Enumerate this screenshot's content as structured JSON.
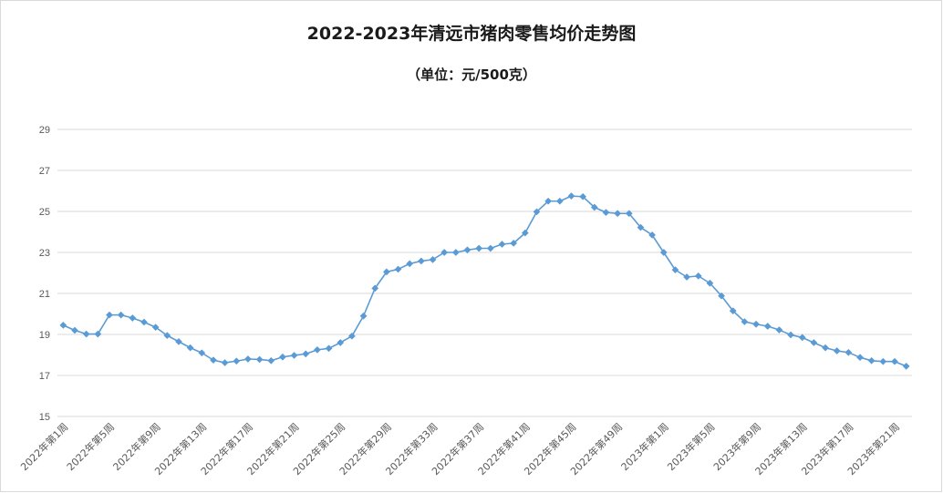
{
  "chart_data": {
    "type": "line",
    "title": "2022-2023年清远市猪肉零售均价走势图",
    "subtitle": "（单位：元/500克）",
    "xlabel": "",
    "ylabel": "",
    "ylim": [
      15,
      29
    ],
    "yticks": [
      15,
      17,
      19,
      21,
      23,
      25,
      27,
      29
    ],
    "grid": true,
    "legend": "none",
    "colors": {
      "line": "#5b9bd5",
      "grid": "#d9d9d9",
      "text": "#595959"
    },
    "tick_labels": [
      "2022年第1周",
      "2022年第5周",
      "2022年第9周",
      "2022年第13周",
      "2022年第17周",
      "2022年第21周",
      "2022年第25周",
      "2022年第29周",
      "2022年第33周",
      "2022年第37周",
      "2022年第41周",
      "2022年第45周",
      "2022年第49周",
      "2023年第1周",
      "2023年第5周",
      "2023年第9周",
      "2023年第13周",
      "2023年第17周",
      "2023年第21周"
    ],
    "series": [
      {
        "values": [
          19.45,
          19.2,
          19.02,
          19.02,
          19.95,
          19.95,
          19.8,
          19.6,
          19.35,
          18.95,
          18.65,
          18.35,
          18.1,
          17.75,
          17.62,
          17.7,
          17.8,
          17.78,
          17.72,
          17.9,
          17.98,
          18.05,
          18.25,
          18.32,
          18.6,
          18.92,
          19.9,
          21.25,
          22.05,
          22.18,
          22.45,
          22.58,
          22.65,
          23.0,
          23.0,
          23.12,
          23.2,
          23.2,
          23.4,
          23.45,
          23.95,
          24.98,
          25.5,
          25.5,
          25.75,
          25.72,
          25.2,
          24.95,
          24.9,
          24.9,
          24.22,
          23.85,
          23.0,
          22.15,
          21.8,
          21.85,
          21.5,
          20.88,
          20.15,
          19.62,
          19.5,
          19.4,
          19.22,
          18.98,
          18.85,
          18.6,
          18.35,
          18.2,
          18.12,
          17.88,
          17.72,
          17.68,
          17.68,
          17.45
        ]
      }
    ]
  }
}
